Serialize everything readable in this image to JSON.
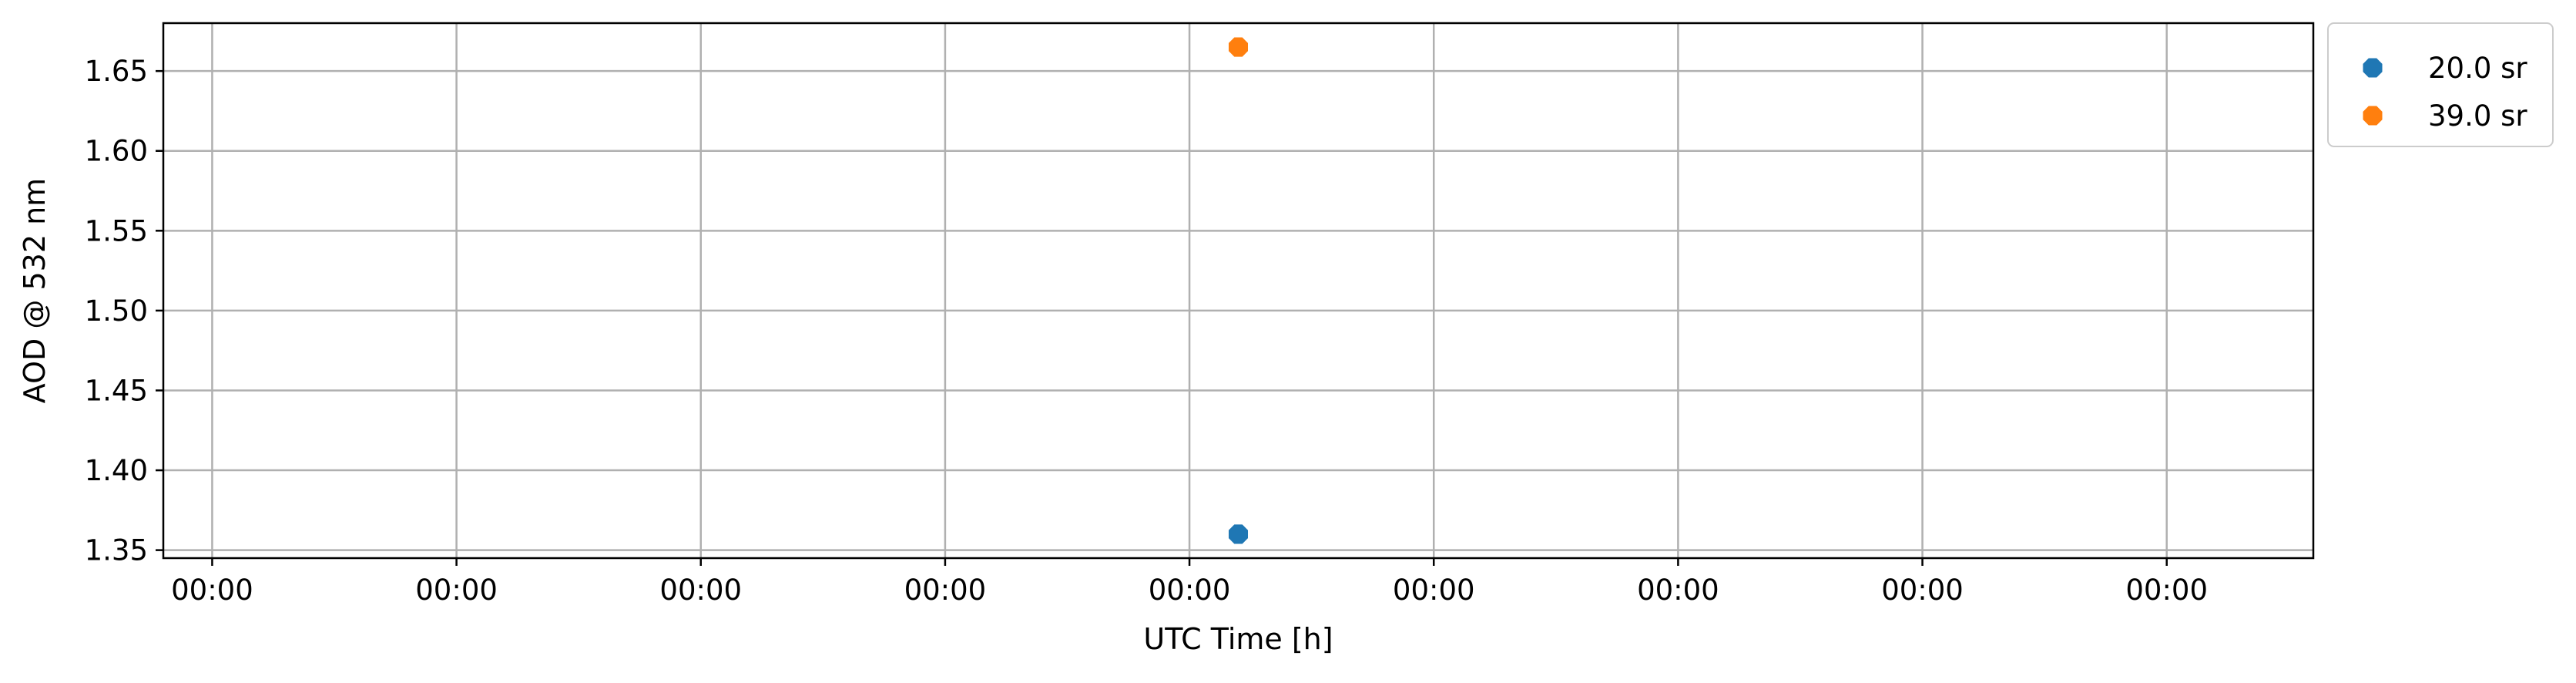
{
  "chart_data": {
    "type": "scatter",
    "title": "",
    "xlabel": "UTC Time [h]",
    "ylabel": "AOD @ 532 nm",
    "x_tick_labels": [
      "00:00",
      "00:00",
      "00:00",
      "00:00",
      "00:00",
      "00:00",
      "00:00",
      "00:00",
      "00:00"
    ],
    "x_ticks": [
      0,
      1,
      2,
      3,
      4,
      5,
      6,
      7,
      8
    ],
    "xlim": [
      -0.2,
      8.6
    ],
    "y_ticks": [
      1.35,
      1.4,
      1.45,
      1.5,
      1.55,
      1.6,
      1.65
    ],
    "y_tick_labels": [
      "1.35",
      "1.40",
      "1.45",
      "1.50",
      "1.55",
      "1.60",
      "1.65"
    ],
    "ylim": [
      1.345,
      1.68
    ],
    "grid": true,
    "legend_placement": "outside-top-right",
    "series": [
      {
        "name": "20.0 sr",
        "color": "#1f77b4",
        "marker": "octagon",
        "x": [
          4.2
        ],
        "y": [
          1.36
        ]
      },
      {
        "name": "39.0 sr",
        "color": "#ff7f0e",
        "marker": "octagon",
        "x": [
          4.2
        ],
        "y": [
          1.665
        ]
      }
    ]
  }
}
